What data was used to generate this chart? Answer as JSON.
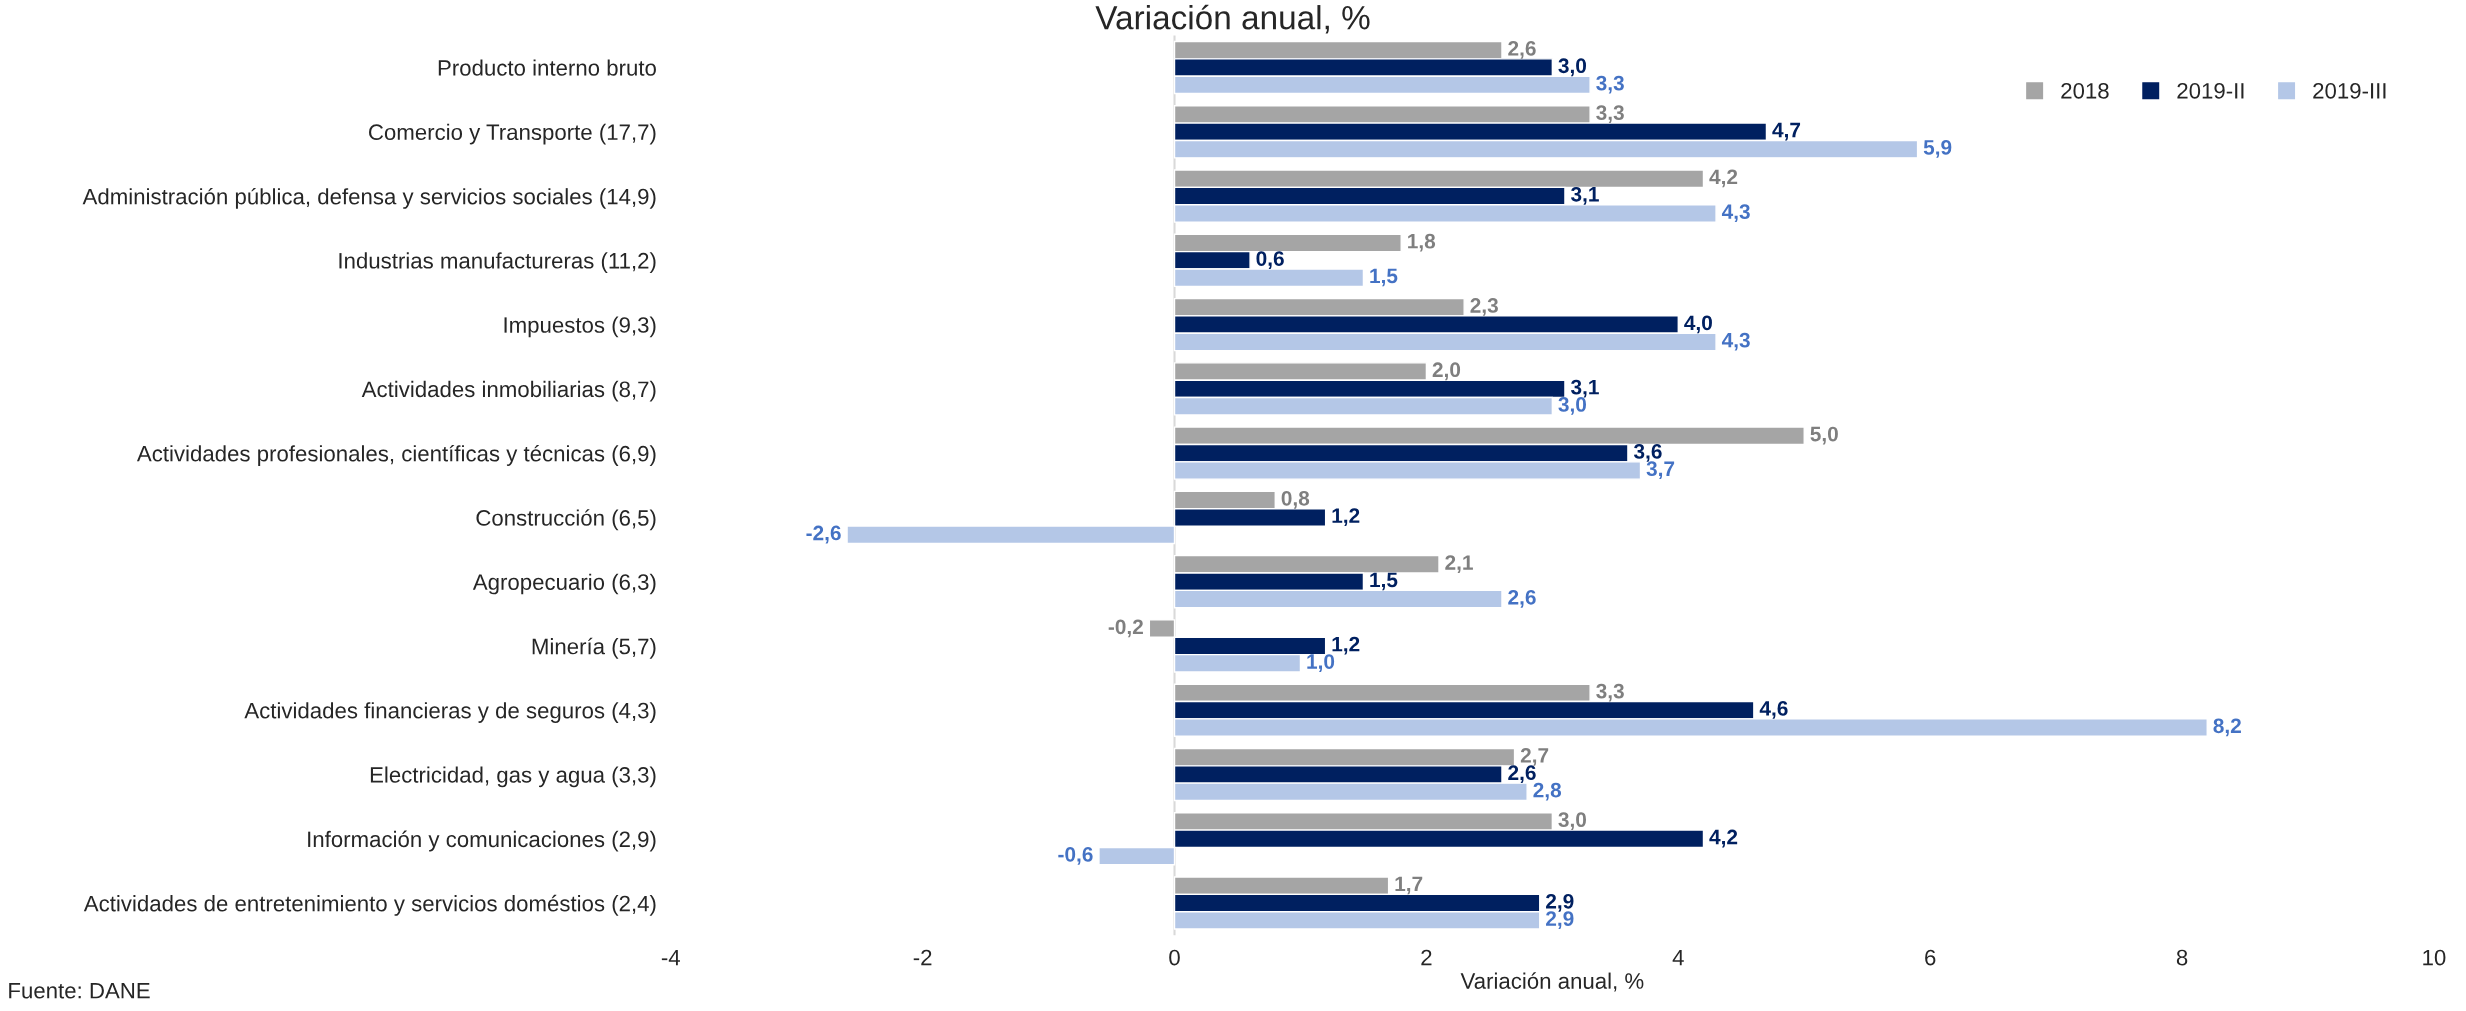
{
  "chart_data": {
    "type": "bar",
    "orientation": "horizontal",
    "title": "Variación anual, %",
    "xlabel": "Variación anual, %",
    "categories": [
      "Producto interno bruto",
      "Comercio y Transporte (17,7)",
      "Administración pública, defensa y servicios sociales (14,9)",
      "Industrias manufactureras (11,2)",
      "Impuestos (9,3)",
      "Actividades inmobiliarias (8,7)",
      "Actividades profesionales, científicas y técnicas (6,9)",
      "Construcción (6,5)",
      "Agropecuario (6,3)",
      "Minería (5,7)",
      "Actividades financieras y de seguros (4,3)",
      "Electricidad, gas y agua (3,3)",
      "Información y comunicaciones (2,9)",
      "Actividades de entretenimiento y servicios doméstios (2,4)"
    ],
    "series": [
      {
        "name": "2018",
        "color": "#a5a5a5",
        "values": [
          2.6,
          3.3,
          4.2,
          1.8,
          2.3,
          2.0,
          5.0,
          0.8,
          2.1,
          -0.2,
          3.3,
          2.7,
          3.0,
          1.7
        ],
        "value_labels": [
          "2,6",
          "3,3",
          "4,2",
          "1,8",
          "2,3",
          "2,0",
          "5,0",
          "0,8",
          "2,1",
          "-0,2",
          "3,3",
          "2,7",
          "3,0",
          "1,7"
        ]
      },
      {
        "name": "2019-II",
        "color": "#002060",
        "values": [
          3.0,
          4.7,
          3.1,
          0.6,
          4.0,
          3.1,
          3.6,
          1.2,
          1.5,
          1.2,
          4.6,
          2.6,
          4.2,
          2.9
        ],
        "value_labels": [
          "3,0",
          "4,7",
          "3,1",
          "0,6",
          "4,0",
          "3,1",
          "3,6",
          "1,2",
          "1,5",
          "1,2",
          "4,6",
          "2,6",
          "4,2",
          "2,9"
        ]
      },
      {
        "name": "2019-III",
        "color": "#b4c7e7",
        "values": [
          3.3,
          5.9,
          4.3,
          1.5,
          4.3,
          3.0,
          3.7,
          -2.6,
          2.6,
          1.0,
          8.2,
          2.8,
          -0.6,
          2.9
        ],
        "value_labels": [
          "3,3",
          "5,9",
          "4,3",
          "1,5",
          "4,3",
          "3,0",
          "3,7",
          "-2,6",
          "2,6",
          "1,0",
          "8,2",
          "2,8",
          "-0,6",
          "2,9"
        ]
      }
    ],
    "xlim": [
      -4,
      10
    ],
    "xticks": [
      -4,
      -2,
      0,
      2,
      4,
      6,
      8,
      10
    ],
    "grid": false,
    "ref_lines": [
      {
        "axis": "x",
        "value": 0,
        "color": "#d9d9d9"
      }
    ],
    "legend": "top right",
    "annotations": [
      "Fuente: DANE"
    ]
  }
}
